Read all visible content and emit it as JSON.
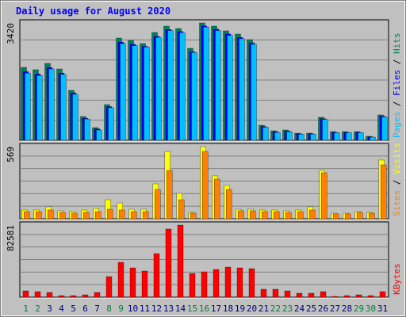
{
  "title": "Daily usage for August 2020",
  "legend_separator": " / ",
  "chart_data": [
    {
      "type": "bar",
      "categories": [
        "1",
        "2",
        "3",
        "4",
        "5",
        "6",
        "7",
        "8",
        "9",
        "10",
        "11",
        "12",
        "13",
        "14",
        "15",
        "16",
        "17",
        "18",
        "19",
        "20",
        "21",
        "22",
        "23",
        "24",
        "25",
        "26",
        "27",
        "28",
        "29",
        "30",
        "31"
      ],
      "category_colors": [
        "#008040",
        "#008040",
        "#000080",
        "#000080",
        "#000080",
        "#000080",
        "#000080",
        "#008040",
        "#008040",
        "#000080",
        "#000080",
        "#000080",
        "#000080",
        "#000080",
        "#008040",
        "#008040",
        "#000080",
        "#000080",
        "#000080",
        "#000080",
        "#000080",
        "#008040",
        "#008040",
        "#000080",
        "#000080",
        "#000080",
        "#000080",
        "#000080",
        "#008040",
        "#008040",
        "#000080"
      ],
      "ylim": [
        0,
        3420
      ],
      "yticks": [
        3420
      ],
      "series": [
        {
          "name": "Hits",
          "color": "#00805c",
          "values": [
            2126,
            2057,
            2242,
            2080,
            1456,
            693,
            370,
            1040,
            2981,
            2912,
            2820,
            3143,
            3328,
            3259,
            2681,
            3420,
            3328,
            3190,
            3097,
            2935,
            439,
            277,
            300,
            208,
            208,
            670,
            254,
            254,
            254,
            116,
            740
          ]
        },
        {
          "name": "Files",
          "color": "#0000ff",
          "values": [
            2000,
            1930,
            2120,
            1960,
            1380,
            640,
            330,
            980,
            2860,
            2800,
            2740,
            3030,
            3230,
            3170,
            2580,
            3330,
            3240,
            3100,
            3000,
            2840,
            400,
            250,
            270,
            190,
            190,
            630,
            230,
            230,
            230,
            100,
            700
          ]
        },
        {
          "name": "Pages",
          "color": "#00c0ff",
          "values": [
            1960,
            1890,
            2080,
            1920,
            1340,
            620,
            300,
            950,
            2820,
            2760,
            2720,
            3000,
            3200,
            3140,
            2560,
            3300,
            3200,
            3060,
            2960,
            2800,
            380,
            230,
            250,
            180,
            180,
            610,
            220,
            220,
            220,
            90,
            680
          ]
        }
      ],
      "legend_order": [
        2,
        1,
        0
      ]
    },
    {
      "type": "bar",
      "ylim": [
        0,
        569
      ],
      "yticks": [
        569
      ],
      "series": [
        {
          "name": "Visits",
          "color": "#ffff00",
          "values": [
            69,
            69,
            94,
            63,
            56,
            69,
            81,
            150,
            125,
            75,
            75,
            275,
            531,
            200,
            50,
            569,
            338,
            263,
            75,
            75,
            69,
            69,
            63,
            69,
            94,
            381,
            44,
            44,
            56,
            50,
            463
          ]
        },
        {
          "name": "Sites",
          "color": "#ff8000",
          "values": [
            56,
            56,
            69,
            50,
            44,
            50,
            56,
            75,
            69,
            56,
            56,
            231,
            381,
            150,
            44,
            531,
            313,
            231,
            63,
            63,
            56,
            56,
            50,
            56,
            69,
            363,
            38,
            38,
            50,
            44,
            425
          ]
        }
      ],
      "legend_order": [
        1,
        0
      ]
    },
    {
      "type": "bar",
      "ylim": [
        0,
        82581
      ],
      "yticks": [
        82581
      ],
      "series": [
        {
          "name": "KBytes",
          "color": "#ff0000",
          "values": [
            7256,
            6349,
            5442,
            1814,
            1814,
            2721,
            5442,
            23582,
            39908,
            33558,
            29930,
            49885,
            78046,
            82581,
            27209,
            29023,
            31744,
            34465,
            33558,
            32651,
            9070,
            9070,
            7256,
            4535,
            4535,
            6349,
            907,
            1814,
            2721,
            1814,
            6349
          ]
        }
      ],
      "legend_order": [
        0
      ]
    }
  ]
}
